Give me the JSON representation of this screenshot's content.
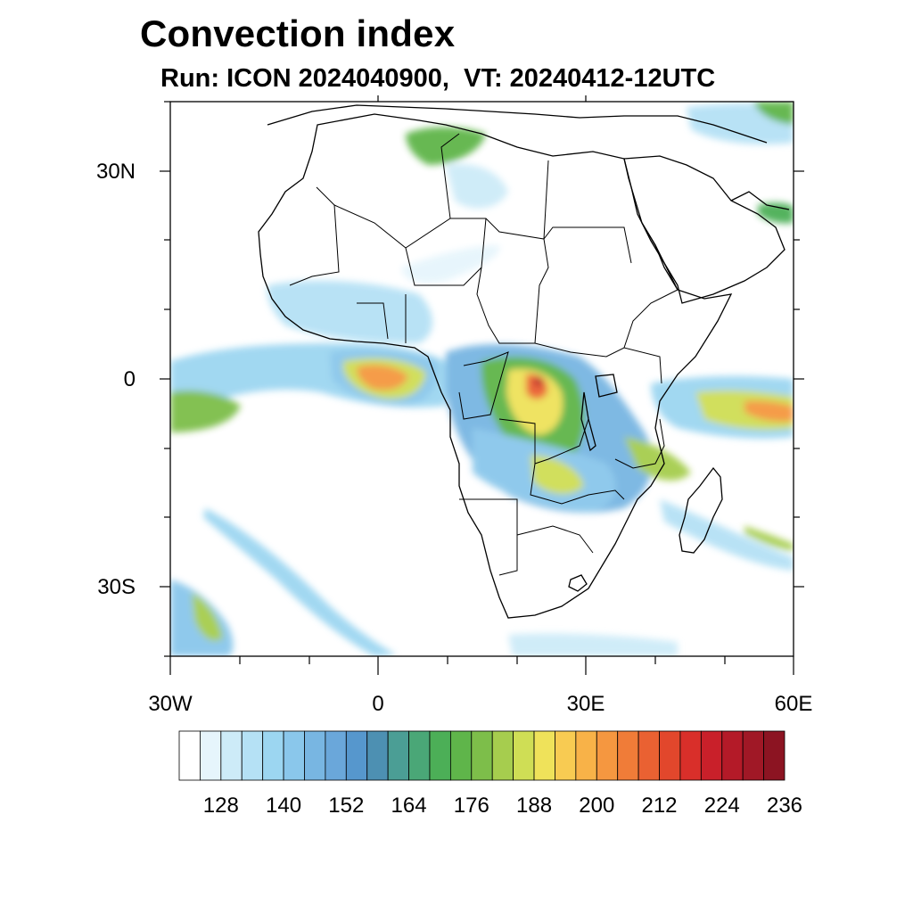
{
  "title": "Convection index",
  "subtitle": "Run: ICON 2024040900,  VT: 20240412-12UTC",
  "axes": {
    "lat_labels": [
      {
        "text": "30N",
        "value": 30
      },
      {
        "text": "0",
        "value": 0
      },
      {
        "text": "30S",
        "value": -30
      }
    ],
    "lon_labels": [
      {
        "text": "30W",
        "value": -30
      },
      {
        "text": "0",
        "value": 0
      },
      {
        "text": "30E",
        "value": 30
      },
      {
        "text": "60E",
        "value": 60
      }
    ],
    "lon_range": [
      -30,
      60
    ],
    "lat_range": [
      -40,
      40
    ]
  },
  "colorbar": {
    "colors": [
      "#ffffff",
      "#e6f5fc",
      "#cdebf8",
      "#b5e1f5",
      "#9cd6f1",
      "#8ac7eb",
      "#78b6e2",
      "#6aa7da",
      "#5697cd",
      "#4d90b2",
      "#4b9e95",
      "#4aa777",
      "#4caf57",
      "#5fb54a",
      "#7dbe4a",
      "#a6cd4e",
      "#cfde55",
      "#efe25a",
      "#f8cb52",
      "#f8b248",
      "#f59740",
      "#f07c38",
      "#ea6132",
      "#e2472c",
      "#d92f2a",
      "#c9202a",
      "#b41a28",
      "#a01826",
      "#8c1422"
    ],
    "labels": [
      "128",
      "140",
      "152",
      "164",
      "176",
      "188",
      "200",
      "212",
      "224",
      "236"
    ]
  },
  "icons": [
    "coastline-map",
    "country-borders",
    "convection-shading"
  ]
}
